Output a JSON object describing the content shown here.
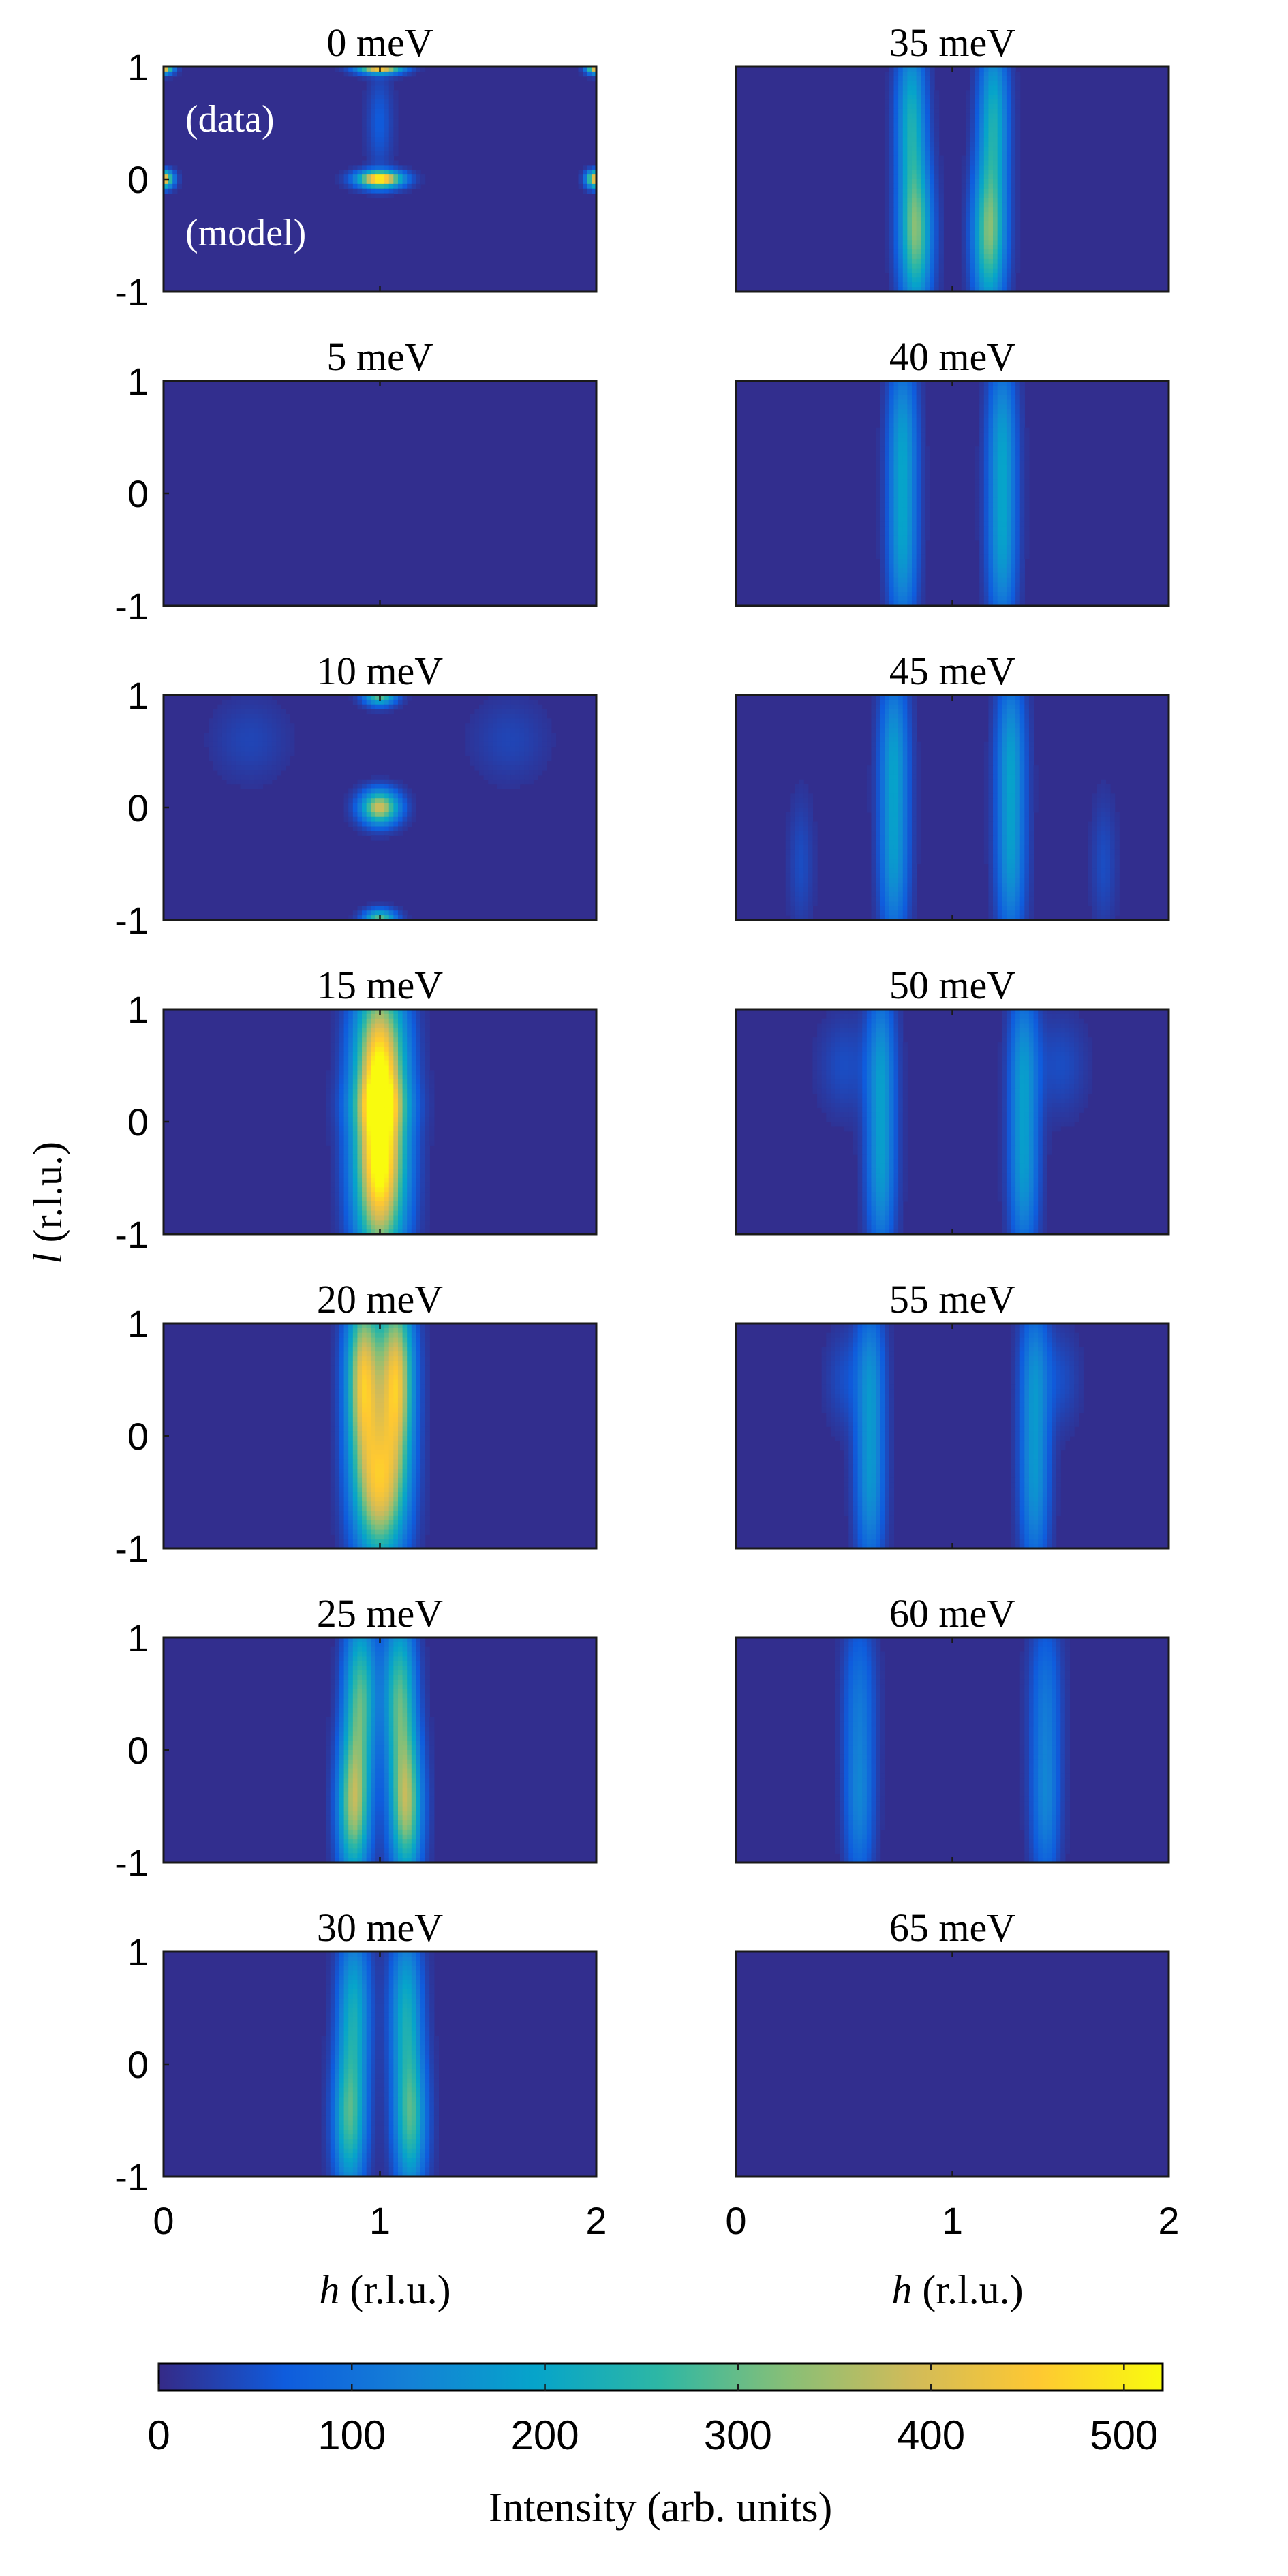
{
  "chart_data": {
    "type": "heatmap",
    "title": "",
    "xlabel_prefix": "h",
    "xlabel_suffix": " (r.l.u.)",
    "ylabel_prefix": "l",
    "ylabel_suffix": " (r.l.u.)",
    "xlim": [
      0,
      2
    ],
    "ylim": [
      -1,
      1
    ],
    "xticks": [
      0,
      1,
      2
    ],
    "yticks": [
      -1,
      0,
      1
    ],
    "upper_half_label": "(data)",
    "lower_half_label": "(model)",
    "colorbar": {
      "label": "Intensity (arb. units)",
      "min": 0,
      "max": 520,
      "ticks": [
        0,
        100,
        200,
        300,
        400,
        500
      ],
      "colormap": "parula",
      "stops": [
        "#352a87",
        "#0f5cdd",
        "#1481d6",
        "#06a4ca",
        "#2eb7a4",
        "#87bf77",
        "#d1bb59",
        "#fec832",
        "#f9fb0e"
      ]
    },
    "panels": [
      {
        "energy": "0 meV",
        "features": [
          {
            "h": 1.0,
            "l": 0.0,
            "w": 0.07,
            "hl": 0.05,
            "i": 520
          },
          {
            "h": 1.0,
            "l": 1.0,
            "w": 0.07,
            "hl": 0.04,
            "i": 480
          },
          {
            "h": 0.0,
            "l": 1.0,
            "w": 0.03,
            "hl": 0.04,
            "i": 480
          },
          {
            "h": 2.0,
            "l": 1.0,
            "w": 0.03,
            "hl": 0.04,
            "i": 480
          },
          {
            "h": 0.0,
            "l": 0.0,
            "w": 0.03,
            "hl": 0.05,
            "i": 470
          },
          {
            "h": 2.0,
            "l": 0.0,
            "w": 0.03,
            "hl": 0.05,
            "i": 470
          },
          {
            "h": 1.0,
            "l": 0.5,
            "w": 0.04,
            "hl": 0.3,
            "i": 60
          }
        ]
      },
      {
        "energy": "35 meV",
        "features": [
          {
            "h": 0.81,
            "l": 0.55,
            "w": 0.045,
            "hl": 0.5,
            "i": 210
          },
          {
            "h": 1.19,
            "l": 0.55,
            "w": 0.045,
            "hl": 0.5,
            "i": 210
          },
          {
            "h": 0.83,
            "l": -0.5,
            "w": 0.05,
            "hl": 0.45,
            "i": 300
          },
          {
            "h": 1.17,
            "l": -0.5,
            "w": 0.05,
            "hl": 0.45,
            "i": 300
          }
        ]
      },
      {
        "energy": "5 meV",
        "features": []
      },
      {
        "energy": "40 meV",
        "features": [
          {
            "h": 0.77,
            "l": 0.5,
            "w": 0.045,
            "hl": 0.5,
            "i": 160
          },
          {
            "h": 1.23,
            "l": 0.5,
            "w": 0.045,
            "hl": 0.5,
            "i": 160
          },
          {
            "h": 0.77,
            "l": -0.5,
            "w": 0.045,
            "hl": 0.5,
            "i": 160
          },
          {
            "h": 1.23,
            "l": -0.5,
            "w": 0.045,
            "hl": 0.5,
            "i": 160
          }
        ]
      },
      {
        "energy": "10 meV",
        "features": [
          {
            "h": 1.0,
            "l": 0.0,
            "w": 0.06,
            "hl": 0.1,
            "i": 390
          },
          {
            "h": 1.0,
            "l": 1.0,
            "w": 0.05,
            "hl": 0.06,
            "i": 300
          },
          {
            "h": 1.0,
            "l": -1.0,
            "w": 0.05,
            "hl": 0.06,
            "i": 300
          },
          {
            "h": 0.4,
            "l": 0.6,
            "w": 0.12,
            "hl": 0.25,
            "i": 30
          },
          {
            "h": 1.6,
            "l": 0.6,
            "w": 0.12,
            "hl": 0.25,
            "i": 30
          }
        ]
      },
      {
        "energy": "45 meV",
        "features": [
          {
            "h": 0.73,
            "l": 0.5,
            "w": 0.045,
            "hl": 0.5,
            "i": 160
          },
          {
            "h": 1.27,
            "l": 0.5,
            "w": 0.045,
            "hl": 0.5,
            "i": 160
          },
          {
            "h": 0.73,
            "l": -0.5,
            "w": 0.045,
            "hl": 0.5,
            "i": 150
          },
          {
            "h": 1.27,
            "l": -0.5,
            "w": 0.045,
            "hl": 0.5,
            "i": 150
          },
          {
            "h": 0.3,
            "l": -0.5,
            "w": 0.04,
            "hl": 0.4,
            "i": 40
          },
          {
            "h": 1.7,
            "l": -0.5,
            "w": 0.04,
            "hl": 0.4,
            "i": 40
          }
        ]
      },
      {
        "energy": "15 meV",
        "features": [
          {
            "h": 1.0,
            "l": 0.5,
            "w": 0.08,
            "hl": 0.55,
            "i": 460
          },
          {
            "h": 1.0,
            "l": -0.5,
            "w": 0.08,
            "hl": 0.55,
            "i": 450
          },
          {
            "h": 1.0,
            "l": 0.15,
            "w": 0.1,
            "hl": 0.15,
            "i": 80
          }
        ]
      },
      {
        "energy": "50 meV",
        "features": [
          {
            "h": 0.67,
            "l": 0.5,
            "w": 0.045,
            "hl": 0.5,
            "i": 150
          },
          {
            "h": 1.33,
            "l": 0.5,
            "w": 0.045,
            "hl": 0.5,
            "i": 150
          },
          {
            "h": 0.67,
            "l": -0.5,
            "w": 0.045,
            "hl": 0.5,
            "i": 150
          },
          {
            "h": 1.33,
            "l": -0.5,
            "w": 0.045,
            "hl": 0.5,
            "i": 150
          },
          {
            "h": 0.5,
            "l": 0.5,
            "w": 0.08,
            "hl": 0.3,
            "i": 40
          },
          {
            "h": 1.5,
            "l": 0.5,
            "w": 0.08,
            "hl": 0.3,
            "i": 40
          }
        ]
      },
      {
        "energy": "20 meV",
        "features": [
          {
            "h": 0.92,
            "l": 0.5,
            "w": 0.05,
            "hl": 0.55,
            "i": 330
          },
          {
            "h": 1.08,
            "l": 0.5,
            "w": 0.05,
            "hl": 0.55,
            "i": 330
          },
          {
            "h": 1.0,
            "l": -0.5,
            "w": 0.08,
            "hl": 0.45,
            "i": 380
          },
          {
            "h": 1.0,
            "l": 0.5,
            "w": 0.09,
            "hl": 0.55,
            "i": 150
          }
        ]
      },
      {
        "energy": "55 meV",
        "features": [
          {
            "h": 0.62,
            "l": 0.5,
            "w": 0.045,
            "hl": 0.5,
            "i": 140
          },
          {
            "h": 1.38,
            "l": 0.5,
            "w": 0.045,
            "hl": 0.5,
            "i": 140
          },
          {
            "h": 0.62,
            "l": -0.5,
            "w": 0.045,
            "hl": 0.5,
            "i": 140
          },
          {
            "h": 1.38,
            "l": -0.5,
            "w": 0.045,
            "hl": 0.5,
            "i": 140
          },
          {
            "h": 0.5,
            "l": 0.5,
            "w": 0.06,
            "hl": 0.3,
            "i": 40
          },
          {
            "h": 1.5,
            "l": 0.5,
            "w": 0.06,
            "hl": 0.3,
            "i": 40
          }
        ]
      },
      {
        "energy": "25 meV",
        "features": [
          {
            "h": 0.91,
            "l": 0.5,
            "w": 0.05,
            "hl": 0.5,
            "i": 270
          },
          {
            "h": 1.09,
            "l": 0.5,
            "w": 0.05,
            "hl": 0.5,
            "i": 270
          },
          {
            "h": 0.88,
            "l": -0.5,
            "w": 0.05,
            "hl": 0.45,
            "i": 340
          },
          {
            "h": 1.12,
            "l": -0.5,
            "w": 0.05,
            "hl": 0.45,
            "i": 340
          }
        ]
      },
      {
        "energy": "60 meV",
        "features": [
          {
            "h": 0.57,
            "l": 0.5,
            "w": 0.05,
            "hl": 0.5,
            "i": 90
          },
          {
            "h": 1.43,
            "l": 0.5,
            "w": 0.05,
            "hl": 0.5,
            "i": 90
          },
          {
            "h": 0.57,
            "l": -0.5,
            "w": 0.045,
            "hl": 0.5,
            "i": 120
          },
          {
            "h": 1.43,
            "l": -0.5,
            "w": 0.045,
            "hl": 0.5,
            "i": 120
          }
        ]
      },
      {
        "energy": "30 meV",
        "features": [
          {
            "h": 0.88,
            "l": 0.5,
            "w": 0.05,
            "hl": 0.5,
            "i": 200
          },
          {
            "h": 1.12,
            "l": 0.5,
            "w": 0.05,
            "hl": 0.5,
            "i": 200
          },
          {
            "h": 0.86,
            "l": -0.5,
            "w": 0.05,
            "hl": 0.45,
            "i": 260
          },
          {
            "h": 1.14,
            "l": -0.5,
            "w": 0.05,
            "hl": 0.45,
            "i": 260
          }
        ]
      },
      {
        "energy": "65 meV",
        "features": []
      }
    ]
  }
}
